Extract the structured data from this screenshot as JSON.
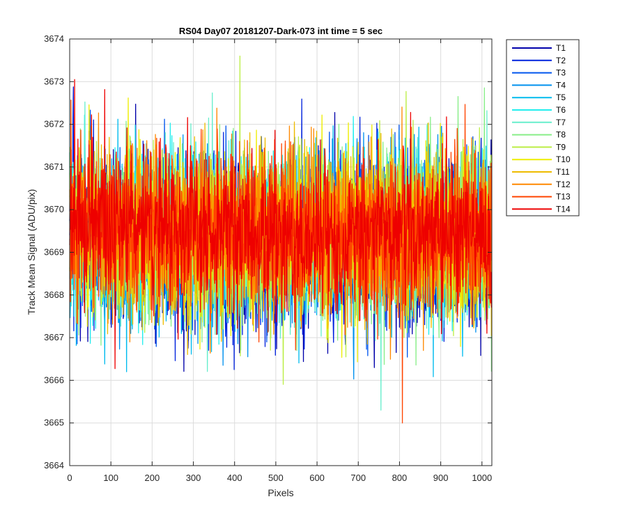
{
  "chart_data": {
    "type": "line",
    "title": "RS04 Day07 20181207-Dark-073 int time = 5 sec",
    "xlabel": "Pixels",
    "ylabel": "Track Mean Signal (ADU/pix)",
    "xlim": [
      0,
      1024
    ],
    "ylim": [
      3664,
      3674
    ],
    "xticks": [
      0,
      100,
      200,
      300,
      400,
      500,
      600,
      700,
      800,
      900,
      1000
    ],
    "yticks": [
      3664,
      3665,
      3666,
      3667,
      3668,
      3669,
      3670,
      3671,
      3672,
      3673,
      3674
    ],
    "grid": true,
    "legend_position": "outside-top-right",
    "samples_per_series": 1024,
    "series": [
      {
        "name": "T1",
        "color": "#0000aa",
        "mean": 3669.2,
        "std": 1.0
      },
      {
        "name": "T2",
        "color": "#0022dd",
        "mean": 3669.25,
        "std": 1.0
      },
      {
        "name": "T3",
        "color": "#0055ee",
        "mean": 3669.25,
        "std": 1.0
      },
      {
        "name": "T4",
        "color": "#0090ee",
        "mean": 3669.3,
        "std": 0.95
      },
      {
        "name": "T5",
        "color": "#00bbee",
        "mean": 3669.3,
        "std": 0.95
      },
      {
        "name": "T6",
        "color": "#22eeee",
        "mean": 3669.35,
        "std": 0.95
      },
      {
        "name": "T7",
        "color": "#66eecc",
        "mean": 3669.35,
        "std": 0.95
      },
      {
        "name": "T8",
        "color": "#88ee88",
        "mean": 3669.4,
        "std": 0.95
      },
      {
        "name": "T9",
        "color": "#bbee44",
        "mean": 3669.4,
        "std": 0.95
      },
      {
        "name": "T10",
        "color": "#eeee00",
        "mean": 3669.4,
        "std": 0.95
      },
      {
        "name": "T11",
        "color": "#eebb00",
        "mean": 3669.4,
        "std": 0.95
      },
      {
        "name": "T12",
        "color": "#ff8800",
        "mean": 3669.4,
        "std": 0.95
      },
      {
        "name": "T13",
        "color": "#ff4400",
        "mean": 3669.45,
        "std": 0.95
      },
      {
        "name": "T14",
        "color": "#ee0000",
        "mean": 3669.45,
        "std": 0.9
      }
    ],
    "annotations": [
      {
        "series": "T13",
        "x": 807,
        "y": 3665.0
      },
      {
        "series": "T9",
        "x": 413,
        "y": 3673.6
      },
      {
        "series": "T14",
        "x": 12,
        "y": 3673.05
      }
    ]
  }
}
